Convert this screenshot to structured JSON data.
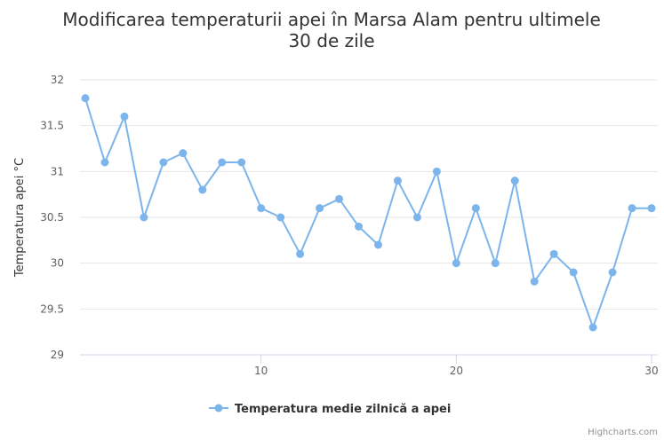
{
  "chart_data": {
    "type": "line",
    "title_line1": "Modificarea temperaturii apei în Marsa Alam pentru ultimele",
    "title_line2": "30 de zile",
    "ylabel": "Temperatura apei °C",
    "xlabel": "",
    "ylim": [
      29,
      32
    ],
    "xlim": [
      1,
      30
    ],
    "y_ticks": [
      29,
      29.5,
      30,
      30.5,
      31,
      31.5,
      32
    ],
    "y_tick_labels": [
      "29",
      "29.5",
      "30",
      "30.5",
      "31",
      "31.5",
      "32"
    ],
    "x_ticks": [
      10,
      20,
      30
    ],
    "x_tick_labels": [
      "10",
      "20",
      "30"
    ],
    "grid": "horizontal",
    "legend_position": "bottom-center",
    "series": [
      {
        "name": "Temperatura medie zilnică a apei",
        "color": "#7cb5ec",
        "x": [
          1,
          2,
          3,
          4,
          5,
          6,
          7,
          8,
          9,
          10,
          11,
          12,
          13,
          14,
          15,
          16,
          17,
          18,
          19,
          20,
          21,
          22,
          23,
          24,
          25,
          26,
          27,
          28,
          29,
          30
        ],
        "values": [
          31.8,
          31.1,
          31.6,
          30.5,
          31.1,
          31.2,
          30.8,
          31.1,
          31.1,
          30.6,
          30.5,
          30.1,
          30.6,
          30.7,
          30.4,
          30.2,
          30.9,
          30.5,
          31.0,
          30.0,
          30.6,
          30.0,
          30.9,
          29.8,
          30.1,
          29.9,
          29.3,
          29.9,
          30.6,
          30.6
        ]
      }
    ]
  },
  "credits": "Highcharts.com"
}
